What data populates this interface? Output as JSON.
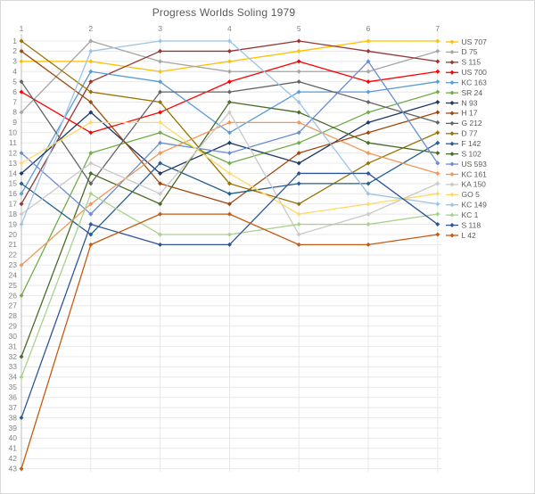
{
  "chart_data": {
    "type": "line",
    "title": "Progress Worlds Soling 1979",
    "xlabel": "",
    "ylabel": "",
    "x_ticks": [
      1,
      2,
      3,
      4,
      5,
      6,
      7
    ],
    "x_axis": {
      "position": "top"
    },
    "y_axis": {
      "min": 1,
      "max": 43,
      "step": 1,
      "reversed": true,
      "meaning": "standing (1 = leader)"
    },
    "grid": true,
    "legend_position": "right",
    "marker": "diamond",
    "style": {
      "title_color": "#595959",
      "tick_color": "#7f7f7f",
      "grid_color": "#e8e8e8",
      "axis_color": "#bfbfbf",
      "legend_text_color": "#595959"
    },
    "series": [
      {
        "name": "US 707",
        "color": "#FFC000",
        "values": [
          3,
          3,
          4,
          3,
          2,
          1,
          1
        ]
      },
      {
        "name": "D 75",
        "color": "#A5A5A5",
        "values": [
          8,
          1,
          3,
          4,
          4,
          4,
          2
        ]
      },
      {
        "name": "S 115",
        "color": "#953735",
        "values": [
          17,
          5,
          2,
          2,
          1,
          2,
          3
        ]
      },
      {
        "name": "US 700",
        "color": "#FF0000",
        "values": [
          6,
          10,
          8,
          5,
          3,
          5,
          4
        ]
      },
      {
        "name": "KC 163",
        "color": "#5B9BD5",
        "values": [
          16,
          4,
          5,
          10,
          6,
          6,
          5
        ]
      },
      {
        "name": "SR 24",
        "color": "#70AD47",
        "values": [
          26,
          12,
          10,
          13,
          11,
          8,
          6
        ]
      },
      {
        "name": "N 93",
        "color": "#1F3864",
        "values": [
          14,
          8,
          14,
          11,
          13,
          9,
          7
        ]
      },
      {
        "name": "H 17",
        "color": "#9E480E",
        "values": [
          2,
          7,
          15,
          17,
          12,
          10,
          8
        ]
      },
      {
        "name": "G 212",
        "color": "#636363",
        "values": [
          5,
          15,
          6,
          6,
          5,
          7,
          9
        ]
      },
      {
        "name": "D 77",
        "color": "#997300",
        "values": [
          1,
          6,
          7,
          15,
          17,
          13,
          10
        ]
      },
      {
        "name": "F 142",
        "color": "#255E91",
        "values": [
          15,
          20,
          13,
          16,
          15,
          15,
          11
        ]
      },
      {
        "name": "S 102",
        "color": "#4A6B28",
        "values": [
          32,
          14,
          17,
          7,
          8,
          11,
          12
        ]
      },
      {
        "name": "US 593",
        "color": "#698ED0",
        "values": [
          12,
          18,
          11,
          12,
          10,
          3,
          13
        ]
      },
      {
        "name": "KC 161",
        "color": "#F1975A",
        "values": [
          23,
          17,
          12,
          9,
          9,
          12,
          14
        ]
      },
      {
        "name": "KA 150",
        "color": "#C9C9C9",
        "values": [
          18,
          13,
          16,
          8,
          20,
          18,
          15
        ]
      },
      {
        "name": "GO 5",
        "color": "#FFD966",
        "values": [
          13,
          9,
          9,
          14,
          18,
          17,
          16
        ]
      },
      {
        "name": "KC 149",
        "color": "#9DC3E6",
        "values": [
          19,
          2,
          1,
          1,
          7,
          16,
          17
        ]
      },
      {
        "name": "KC 1",
        "color": "#A9D18E",
        "values": [
          34,
          16,
          20,
          20,
          19,
          19,
          18
        ]
      },
      {
        "name": "S 118",
        "color": "#2F5597",
        "values": [
          38,
          19,
          21,
          21,
          14,
          14,
          19
        ]
      },
      {
        "name": "L 42",
        "color": "#C55A11",
        "values": [
          43,
          21,
          18,
          18,
          21,
          21,
          20
        ]
      }
    ]
  }
}
